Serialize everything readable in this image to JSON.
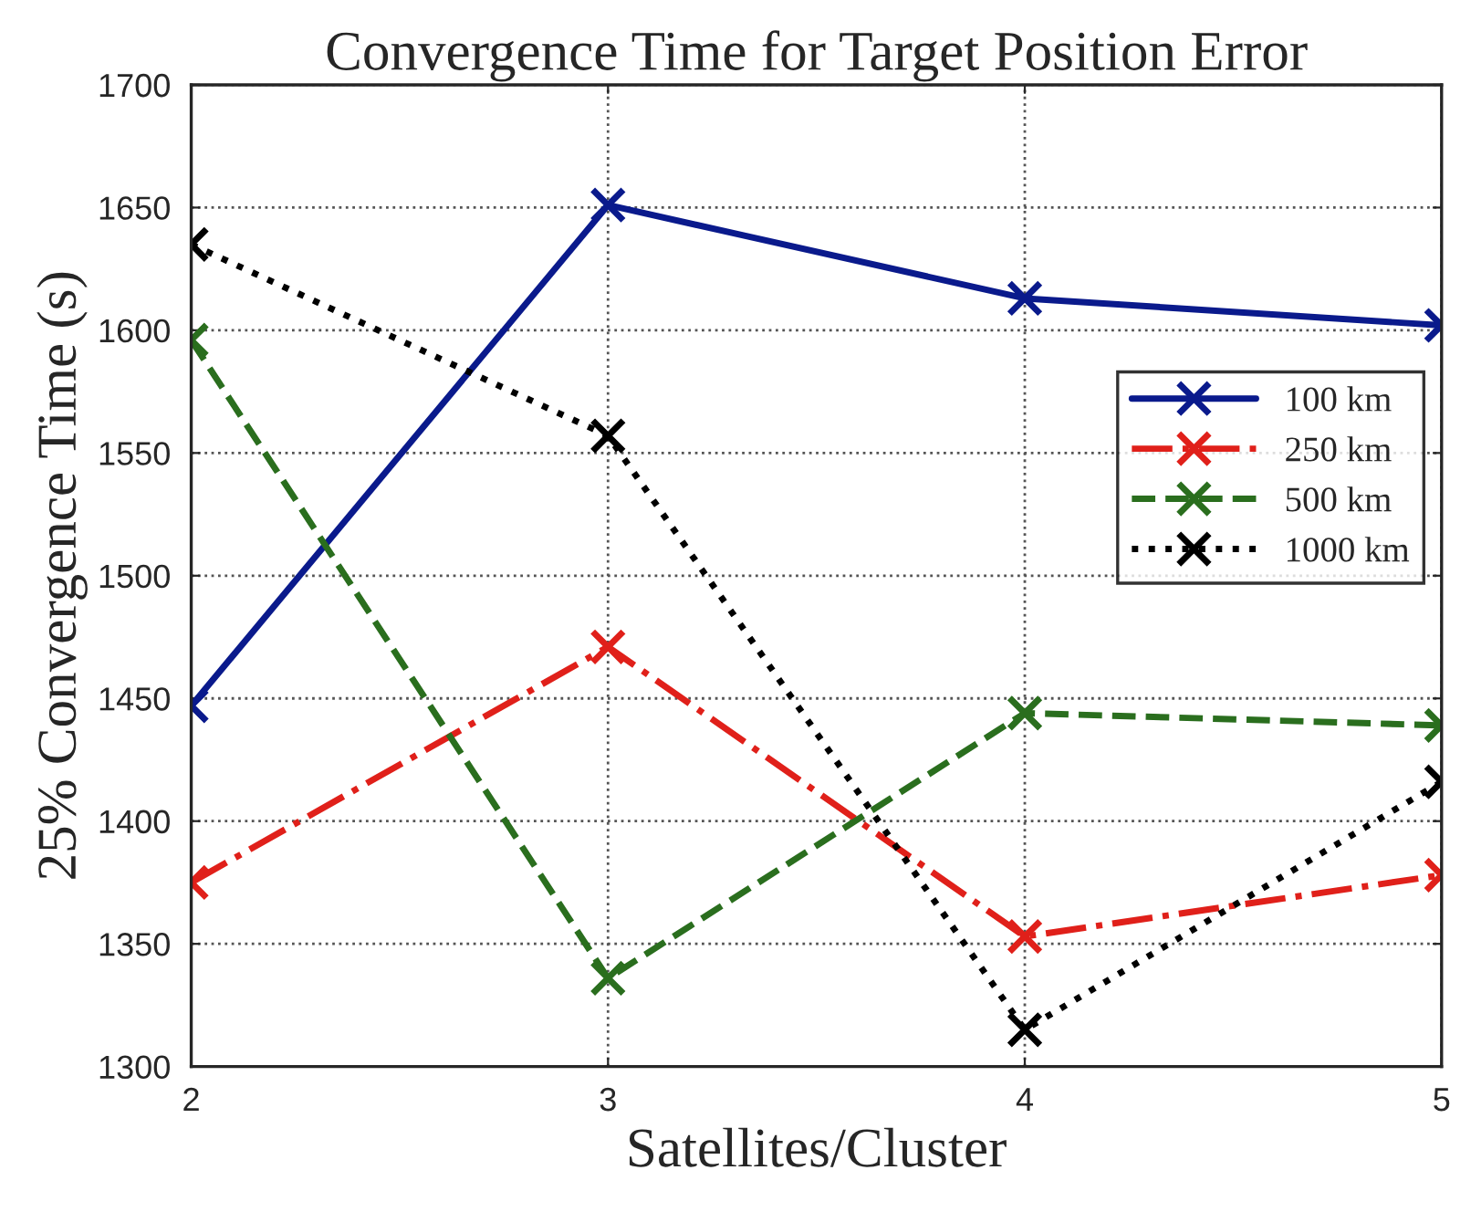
{
  "chart_data": {
    "type": "line",
    "title": "Convergence Time for Target Position Error",
    "xlabel": "Satellites/Cluster",
    "ylabel": "25% Convergence Time (s)",
    "x": [
      2,
      3,
      4,
      5
    ],
    "xlim": [
      2,
      5
    ],
    "xticks": [
      2,
      3,
      4,
      5
    ],
    "ylim": [
      1300,
      1700
    ],
    "yticks": [
      1300,
      1350,
      1400,
      1450,
      1500,
      1550,
      1600,
      1650,
      1700
    ],
    "grid": true,
    "legend": "right",
    "marker": "cross",
    "series": [
      {
        "name": "100 km",
        "color": "#0a1a8c",
        "line_style": "solid",
        "values": [
          1447,
          1651,
          1613,
          1602
        ]
      },
      {
        "name": "250 km",
        "color": "#e0201a",
        "line_style": "dashdot",
        "values": [
          1375,
          1471,
          1353,
          1378
        ]
      },
      {
        "name": "500 km",
        "color": "#2a6e1e",
        "line_style": "dashed",
        "values": [
          1596,
          1336,
          1444,
          1439
        ]
      },
      {
        "name": "1000 km",
        "color": "#000000",
        "line_style": "dotted",
        "values": [
          1635,
          1557,
          1315,
          1416
        ]
      }
    ]
  }
}
